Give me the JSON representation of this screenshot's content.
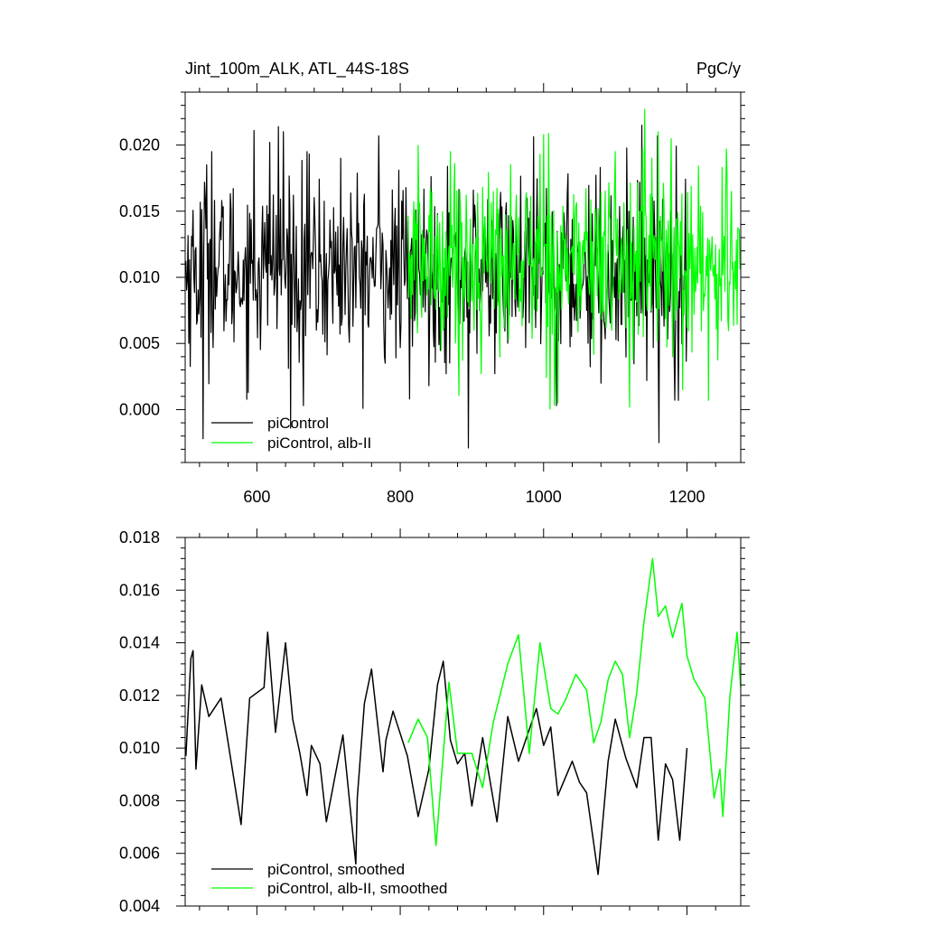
{
  "chart_data": [
    {
      "type": "line",
      "title": "Jint_100m_ALK, ATL_44S-18S",
      "units": "PgC/y",
      "xlabel": "",
      "ylabel": "",
      "xlim": [
        500,
        1275
      ],
      "ylim": [
        -0.004,
        0.024
      ],
      "x_ticks": [
        600,
        800,
        1000,
        1200
      ],
      "x_tick_labels": [
        "600",
        "800",
        "1000",
        "1200"
      ],
      "y_ticks": [
        0.0,
        0.005,
        0.01,
        0.015,
        0.02
      ],
      "y_tick_labels": [
        "0.000",
        "0.005",
        "0.010",
        "0.015",
        "0.020"
      ],
      "grid": false,
      "legend_position": "bottom-left",
      "series": [
        {
          "name": "piControl",
          "color": "#000000",
          "x_start": 501,
          "x_end": 1200,
          "mean": 0.0105,
          "std": 0.004,
          "samples_x": [
            525,
            530,
            537,
            596,
            618,
            630,
            637,
            665,
            670,
            717,
            770,
            813,
            895,
            1018,
            1080,
            1137,
            1161,
            1188
          ],
          "samples_y": [
            -0.0022,
            0.0185,
            0.0195,
            0.0211,
            0.0202,
            0.0214,
            0.021,
            0.0003,
            0.0195,
            0.019,
            0.0207,
            0.0008,
            -0.0029,
            0.0003,
            0.002,
            0.0215,
            -0.0025,
            0.0007
          ]
        },
        {
          "name": "piControl, alb-II",
          "color": "#00ff00",
          "x_start": 811,
          "x_end": 1275,
          "mean": 0.0113,
          "std": 0.004,
          "samples_x": [
            870,
            995,
            1000,
            1020,
            1100,
            1120,
            1141,
            1160,
            1180,
            1194,
            1230,
            1255
          ],
          "samples_y": [
            0.0195,
            0.0193,
            0.0208,
            0.0005,
            0.0195,
            0.0002,
            0.0227,
            0.021,
            0.004,
            0.0015,
            0.0007,
            0.0197
          ]
        }
      ]
    },
    {
      "type": "line",
      "title": "",
      "xlabel": "",
      "ylabel": "",
      "xlim": [
        500,
        1275
      ],
      "ylim": [
        0.004,
        0.018
      ],
      "x_ticks": [
        600,
        800,
        1000,
        1200
      ],
      "x_tick_labels": [
        "",
        "",
        "",
        ""
      ],
      "y_ticks": [
        0.004,
        0.006,
        0.008,
        0.01,
        0.012,
        0.014,
        0.016,
        0.018
      ],
      "y_tick_labels": [
        "0.004",
        "0.006",
        "0.008",
        "0.010",
        "0.012",
        "0.014",
        "0.016",
        "0.018"
      ],
      "grid": false,
      "legend_position": "bottom-left",
      "series": [
        {
          "name": "piControl, smoothed",
          "color": "#000000",
          "x_start": 501,
          "x_end": 1200,
          "points": [
            [
              501,
              0.0097
            ],
            [
              508,
              0.0134
            ],
            [
              511,
              0.0137
            ],
            [
              515,
              0.0092
            ],
            [
              523,
              0.0124
            ],
            [
              533,
              0.0112
            ],
            [
              550,
              0.0119
            ],
            [
              578,
              0.0071
            ],
            [
              590,
              0.0119
            ],
            [
              610,
              0.0123
            ],
            [
              615,
              0.0144
            ],
            [
              626,
              0.0106
            ],
            [
              640,
              0.014
            ],
            [
              650,
              0.0111
            ],
            [
              660,
              0.0098
            ],
            [
              670,
              0.0082
            ],
            [
              676,
              0.0101
            ],
            [
              688,
              0.0094
            ],
            [
              697,
              0.0072
            ],
            [
              720,
              0.0105
            ],
            [
              738,
              0.0056
            ],
            [
              740,
              0.0081
            ],
            [
              750,
              0.0117
            ],
            [
              760,
              0.013
            ],
            [
              776,
              0.0091
            ],
            [
              780,
              0.0103
            ],
            [
              790,
              0.0114
            ],
            [
              810,
              0.0097
            ],
            [
              825,
              0.0074
            ],
            [
              840,
              0.0092
            ],
            [
              852,
              0.0124
            ],
            [
              860,
              0.0133
            ],
            [
              870,
              0.0103
            ],
            [
              880,
              0.0094
            ],
            [
              890,
              0.0098
            ],
            [
              900,
              0.0078
            ],
            [
              915,
              0.0104
            ],
            [
              935,
              0.0072
            ],
            [
              950,
              0.0112
            ],
            [
              965,
              0.0095
            ],
            [
              990,
              0.0115
            ],
            [
              1000,
              0.0101
            ],
            [
              1010,
              0.0108
            ],
            [
              1020,
              0.0082
            ],
            [
              1040,
              0.0095
            ],
            [
              1050,
              0.0087
            ],
            [
              1060,
              0.0083
            ],
            [
              1076,
              0.0052
            ],
            [
              1090,
              0.0095
            ],
            [
              1100,
              0.0111
            ],
            [
              1115,
              0.0096
            ],
            [
              1130,
              0.0085
            ],
            [
              1140,
              0.0104
            ],
            [
              1150,
              0.0104
            ],
            [
              1160,
              0.0065
            ],
            [
              1170,
              0.0094
            ],
            [
              1180,
              0.0088
            ],
            [
              1190,
              0.0065
            ],
            [
              1200,
              0.01
            ]
          ]
        },
        {
          "name": "piControl, alb-II, smoothed",
          "color": "#00ff00",
          "x_start": 811,
          "x_end": 1275,
          "points": [
            [
              811,
              0.0102
            ],
            [
              825,
              0.0111
            ],
            [
              838,
              0.0104
            ],
            [
              850,
              0.0063
            ],
            [
              868,
              0.0125
            ],
            [
              880,
              0.0098
            ],
            [
              900,
              0.0098
            ],
            [
              915,
              0.0085
            ],
            [
              930,
              0.011
            ],
            [
              940,
              0.0121
            ],
            [
              950,
              0.0132
            ],
            [
              965,
              0.0143
            ],
            [
              980,
              0.0098
            ],
            [
              995,
              0.014
            ],
            [
              1010,
              0.0115
            ],
            [
              1020,
              0.0113
            ],
            [
              1030,
              0.0118
            ],
            [
              1045,
              0.0128
            ],
            [
              1060,
              0.0122
            ],
            [
              1070,
              0.0102
            ],
            [
              1080,
              0.011
            ],
            [
              1090,
              0.0126
            ],
            [
              1100,
              0.0133
            ],
            [
              1110,
              0.0128
            ],
            [
              1120,
              0.0104
            ],
            [
              1130,
              0.0121
            ],
            [
              1140,
              0.0148
            ],
            [
              1152,
              0.0172
            ],
            [
              1160,
              0.015
            ],
            [
              1170,
              0.0154
            ],
            [
              1180,
              0.0142
            ],
            [
              1193,
              0.0155
            ],
            [
              1200,
              0.0135
            ],
            [
              1210,
              0.0126
            ],
            [
              1225,
              0.0119
            ],
            [
              1238,
              0.0081
            ],
            [
              1246,
              0.0092
            ],
            [
              1250,
              0.0074
            ],
            [
              1260,
              0.012
            ],
            [
              1270,
              0.0144
            ],
            [
              1275,
              0.0123
            ]
          ]
        }
      ]
    }
  ]
}
